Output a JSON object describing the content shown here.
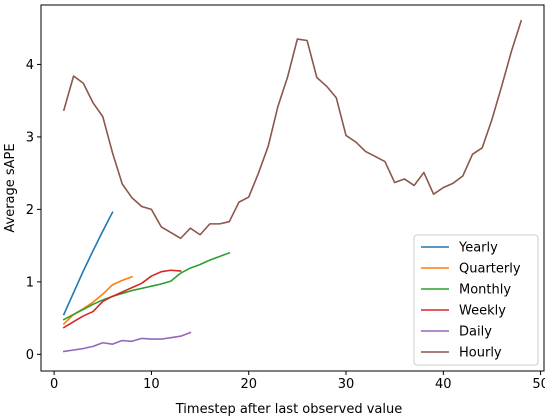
{
  "chart_data": {
    "type": "line",
    "title": "",
    "xlabel": "Timestep after last observed value",
    "ylabel": "Average sAPE",
    "xlim": [
      -1.35,
      50.35
    ],
    "ylim": [
      -0.23,
      4.82
    ],
    "xticks": [
      0,
      10,
      20,
      30,
      40,
      50
    ],
    "yticks": [
      0,
      1,
      2,
      3,
      4
    ],
    "grid": false,
    "legend_position": "bottom-right",
    "series": [
      {
        "name": "Yearly",
        "color": "#1f77b4",
        "x": [
          1,
          2,
          3,
          4,
          5,
          6
        ],
        "y": [
          0.55,
          0.85,
          1.15,
          1.43,
          1.7,
          1.96
        ]
      },
      {
        "name": "Quarterly",
        "color": "#ff7f0e",
        "x": [
          1,
          2,
          3,
          4,
          5,
          6,
          7,
          8
        ],
        "y": [
          0.42,
          0.55,
          0.63,
          0.72,
          0.83,
          0.96,
          1.02,
          1.07
        ]
      },
      {
        "name": "Monthly",
        "color": "#2ca02c",
        "x": [
          1,
          2,
          3,
          4,
          5,
          6,
          7,
          8,
          9,
          10,
          11,
          12,
          13,
          14,
          15,
          16,
          17,
          18
        ],
        "y": [
          0.48,
          0.55,
          0.62,
          0.69,
          0.75,
          0.8,
          0.84,
          0.88,
          0.91,
          0.94,
          0.97,
          1.01,
          1.12,
          1.19,
          1.24,
          1.3,
          1.35,
          1.4
        ]
      },
      {
        "name": "Weekly",
        "color": "#d62728",
        "x": [
          1,
          2,
          3,
          4,
          5,
          6,
          7,
          8,
          9,
          10,
          11,
          12,
          13
        ],
        "y": [
          0.37,
          0.45,
          0.53,
          0.59,
          0.73,
          0.8,
          0.86,
          0.92,
          0.98,
          1.08,
          1.14,
          1.16,
          1.15
        ]
      },
      {
        "name": "Daily",
        "color": "#9467bd",
        "x": [
          1,
          2,
          3,
          4,
          5,
          6,
          7,
          8,
          9,
          10,
          11,
          12,
          13,
          14
        ],
        "y": [
          0.04,
          0.06,
          0.08,
          0.11,
          0.16,
          0.14,
          0.19,
          0.18,
          0.22,
          0.21,
          0.21,
          0.23,
          0.25,
          0.3
        ]
      },
      {
        "name": "Hourly",
        "color": "#8c564b",
        "x": [
          1,
          2,
          3,
          4,
          5,
          6,
          7,
          8,
          9,
          10,
          11,
          12,
          13,
          14,
          15,
          16,
          17,
          18,
          19,
          20,
          21,
          22,
          23,
          24,
          25,
          26,
          27,
          28,
          29,
          30,
          31,
          32,
          33,
          34,
          35,
          36,
          37,
          38,
          39,
          40,
          41,
          42,
          43,
          44,
          45,
          46,
          47,
          48
        ],
        "y": [
          3.37,
          3.84,
          3.74,
          3.47,
          3.28,
          2.78,
          2.35,
          2.16,
          2.04,
          2.0,
          1.76,
          1.68,
          1.6,
          1.74,
          1.65,
          1.8,
          1.8,
          1.83,
          2.1,
          2.17,
          2.5,
          2.87,
          3.42,
          3.83,
          4.35,
          4.33,
          3.82,
          3.7,
          3.54,
          3.02,
          2.93,
          2.8,
          2.73,
          2.66,
          2.37,
          2.42,
          2.33,
          2.51,
          2.21,
          2.3,
          2.36,
          2.46,
          2.76,
          2.85,
          3.24,
          3.7,
          4.18,
          4.6
        ]
      }
    ]
  }
}
